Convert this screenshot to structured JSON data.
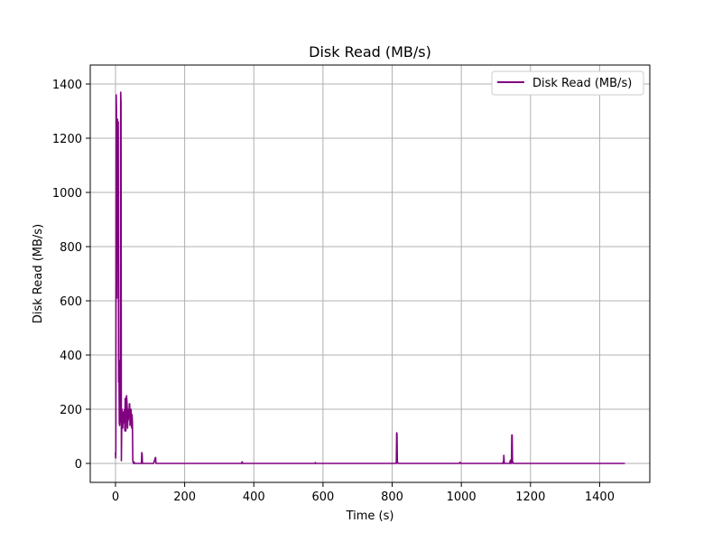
{
  "chart_data": {
    "type": "line",
    "title": "Disk Read (MB/s)",
    "xlabel": "Time (s)",
    "ylabel": "Disk Read (MB/s)",
    "xlim": [
      -73,
      1545
    ],
    "ylim": [
      -70,
      1470
    ],
    "xticks": [
      0,
      200,
      400,
      600,
      800,
      1000,
      1200,
      1400
    ],
    "yticks": [
      0,
      200,
      400,
      600,
      800,
      1000,
      1200,
      1400
    ],
    "grid": true,
    "legend": {
      "position": "top-right"
    },
    "series": [
      {
        "name": "Disk Read (MB/s)",
        "color": "#800080",
        "x": [
          0,
          0.5,
          1,
          2,
          3,
          4,
          5,
          6,
          7,
          8,
          9,
          10,
          11,
          12,
          13,
          14,
          15,
          16,
          17,
          18,
          19,
          20,
          21,
          22,
          23,
          24,
          25,
          26,
          27,
          28,
          29,
          30,
          31,
          32,
          33,
          34,
          35,
          36,
          37,
          38,
          39,
          40,
          41,
          42,
          43,
          44,
          45,
          46,
          47,
          48,
          49,
          50,
          51,
          52,
          53,
          54,
          55,
          58,
          60,
          65,
          70,
          75,
          76,
          77,
          78,
          79,
          80,
          90,
          100,
          110,
          115,
          116,
          117,
          118,
          120,
          130,
          200,
          300,
          365,
          366,
          367,
          368,
          370,
          500,
          577,
          578,
          579,
          600,
          700,
          800,
          812,
          813,
          814,
          815,
          816,
          817,
          818,
          820,
          900,
          995,
          996,
          997,
          1000,
          1100,
          1120,
          1121,
          1122,
          1123,
          1124,
          1125,
          1126,
          1130,
          1135,
          1140,
          1141,
          1142,
          1143,
          1144,
          1145,
          1146,
          1147,
          1148,
          1150,
          1200,
          1300,
          1400,
          1473
        ],
        "y": [
          40,
          20,
          50,
          1360,
          1300,
          610,
          1200,
          1270,
          800,
          1260,
          300,
          380,
          150,
          140,
          160,
          200,
          1370,
          1330,
          10,
          140,
          200,
          150,
          130,
          180,
          190,
          170,
          150,
          200,
          120,
          240,
          150,
          120,
          230,
          250,
          230,
          200,
          130,
          180,
          160,
          200,
          170,
          220,
          220,
          140,
          200,
          150,
          200,
          160,
          130,
          180,
          150,
          10,
          5,
          0,
          0,
          5,
          0,
          0,
          0,
          0,
          0,
          0,
          40,
          35,
          0,
          0,
          0,
          0,
          0,
          0,
          20,
          22,
          0,
          0,
          0,
          0,
          0,
          0,
          0,
          6,
          4,
          0,
          0,
          0,
          0,
          3,
          0,
          0,
          0,
          0,
          0,
          113,
          110,
          8,
          2,
          0,
          0,
          0,
          0,
          0,
          4,
          2,
          0,
          0,
          0,
          5,
          0,
          30,
          5,
          0,
          0,
          0,
          0,
          0,
          8,
          12,
          0,
          0,
          0,
          105,
          105,
          8,
          0,
          0,
          0,
          0,
          0
        ]
      }
    ]
  }
}
